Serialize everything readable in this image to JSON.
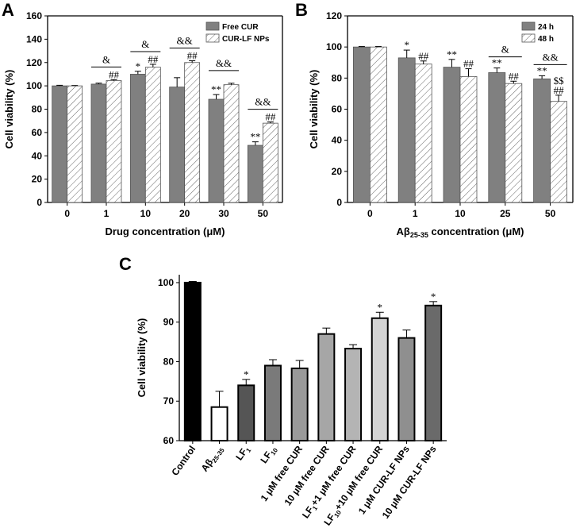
{
  "chart_data": [
    {
      "panel": "A",
      "type": "bar",
      "categories": [
        "0",
        "1",
        "10",
        "20",
        "30",
        "50"
      ],
      "xlabel": "Drug concentration (μM)",
      "ylabel": "Cell viability (%)",
      "ylim": [
        0,
        160
      ],
      "yticks": [
        "0",
        "20",
        "40",
        "60",
        "80",
        "100",
        "120",
        "140",
        "160"
      ],
      "legend_position": "top-right",
      "series": [
        {
          "name": "Free CUR",
          "style": "solid",
          "values": [
            100,
            101.5,
            110,
            99,
            88.5,
            49
          ],
          "errors": [
            0.5,
            0.8,
            2.5,
            8,
            4,
            3
          ],
          "labels": [
            "",
            "",
            "*",
            "",
            "**",
            "**"
          ]
        },
        {
          "name": "CUR-LF NPs",
          "style": "hatched",
          "values": [
            100,
            104.5,
            116,
            120,
            101,
            68
          ],
          "errors": [
            0.3,
            0.8,
            2.5,
            1.5,
            1.2,
            1
          ],
          "labels": [
            "",
            "##",
            "##",
            "##",
            "",
            "##"
          ]
        }
      ],
      "brackets": [
        {
          "category": 1,
          "label": "&"
        },
        {
          "category": 2,
          "label": "&"
        },
        {
          "category": 3,
          "label": "&&"
        },
        {
          "category": 4,
          "label": "&&"
        },
        {
          "category": 5,
          "label": "&&"
        }
      ]
    },
    {
      "panel": "B",
      "type": "bar",
      "categories": [
        "0",
        "1",
        "10",
        "25",
        "50"
      ],
      "xlabel_main": "Aβ",
      "xlabel_sub": "25-35",
      "xlabel_tail": " concentration (μM)",
      "ylabel": "Cell viability (%)",
      "ylim": [
        0,
        120
      ],
      "yticks": [
        "0",
        "20",
        "40",
        "60",
        "80",
        "100",
        "120"
      ],
      "legend_position": "top-right",
      "series": [
        {
          "name": "24 h",
          "style": "solid",
          "values": [
            100,
            93,
            87,
            83.5,
            79.5
          ],
          "errors": [
            0.3,
            5,
            5,
            3,
            2
          ],
          "labels": [
            "",
            "*",
            "**",
            "**",
            "**"
          ]
        },
        {
          "name": "48 h",
          "style": "hatched",
          "values": [
            100,
            89,
            81,
            76.5,
            65
          ],
          "errors": [
            0.3,
            2,
            5,
            1.5,
            4
          ],
          "labels": [
            "",
            "##",
            "##",
            "##",
            "$$ ##"
          ]
        }
      ],
      "brackets": [
        {
          "category": 3,
          "label": "&"
        },
        {
          "category": 4,
          "label": "&&"
        }
      ]
    },
    {
      "panel": "C",
      "type": "bar",
      "ylabel": "Cell viability (%)",
      "ylim": [
        60,
        102
      ],
      "yticks": [
        "60",
        "70",
        "80",
        "90",
        "100"
      ],
      "categories": [
        {
          "main": "Control",
          "sub": ""
        },
        {
          "main": "Aβ",
          "sub": "25-35"
        },
        {
          "main": "LF",
          "sub": "1"
        },
        {
          "main": "LF",
          "sub": "10"
        },
        {
          "main": "1 μM free CUR",
          "sub": ""
        },
        {
          "main": "10 μM free CUR",
          "sub": ""
        },
        {
          "main": "LF",
          "sub": "1",
          "tail": "+1 μM free CUR"
        },
        {
          "main": "LF",
          "sub": "10",
          "tail": "+10 μM free CUR"
        },
        {
          "main": "1 μM CUR-LF NPs",
          "sub": ""
        },
        {
          "main": "10 μM CUR-LF NPs",
          "sub": ""
        }
      ],
      "values": [
        100,
        68.5,
        74,
        79,
        78.3,
        87,
        83.3,
        91,
        86,
        94.2
      ],
      "errors": [
        0.3,
        4,
        1.5,
        1.5,
        2,
        1.5,
        1,
        1.5,
        2,
        1
      ],
      "labels": [
        "",
        "",
        "*",
        "",
        "",
        "",
        "",
        "*",
        "",
        "*"
      ],
      "colors": [
        "#000000",
        "#ffffff",
        "#555555",
        "#7a7a7a",
        "#9a9a9a",
        "#a6a6a6",
        "#b4b4b4",
        "#d4d4d4",
        "#8f8f8f",
        "#6a6a6a"
      ]
    }
  ]
}
